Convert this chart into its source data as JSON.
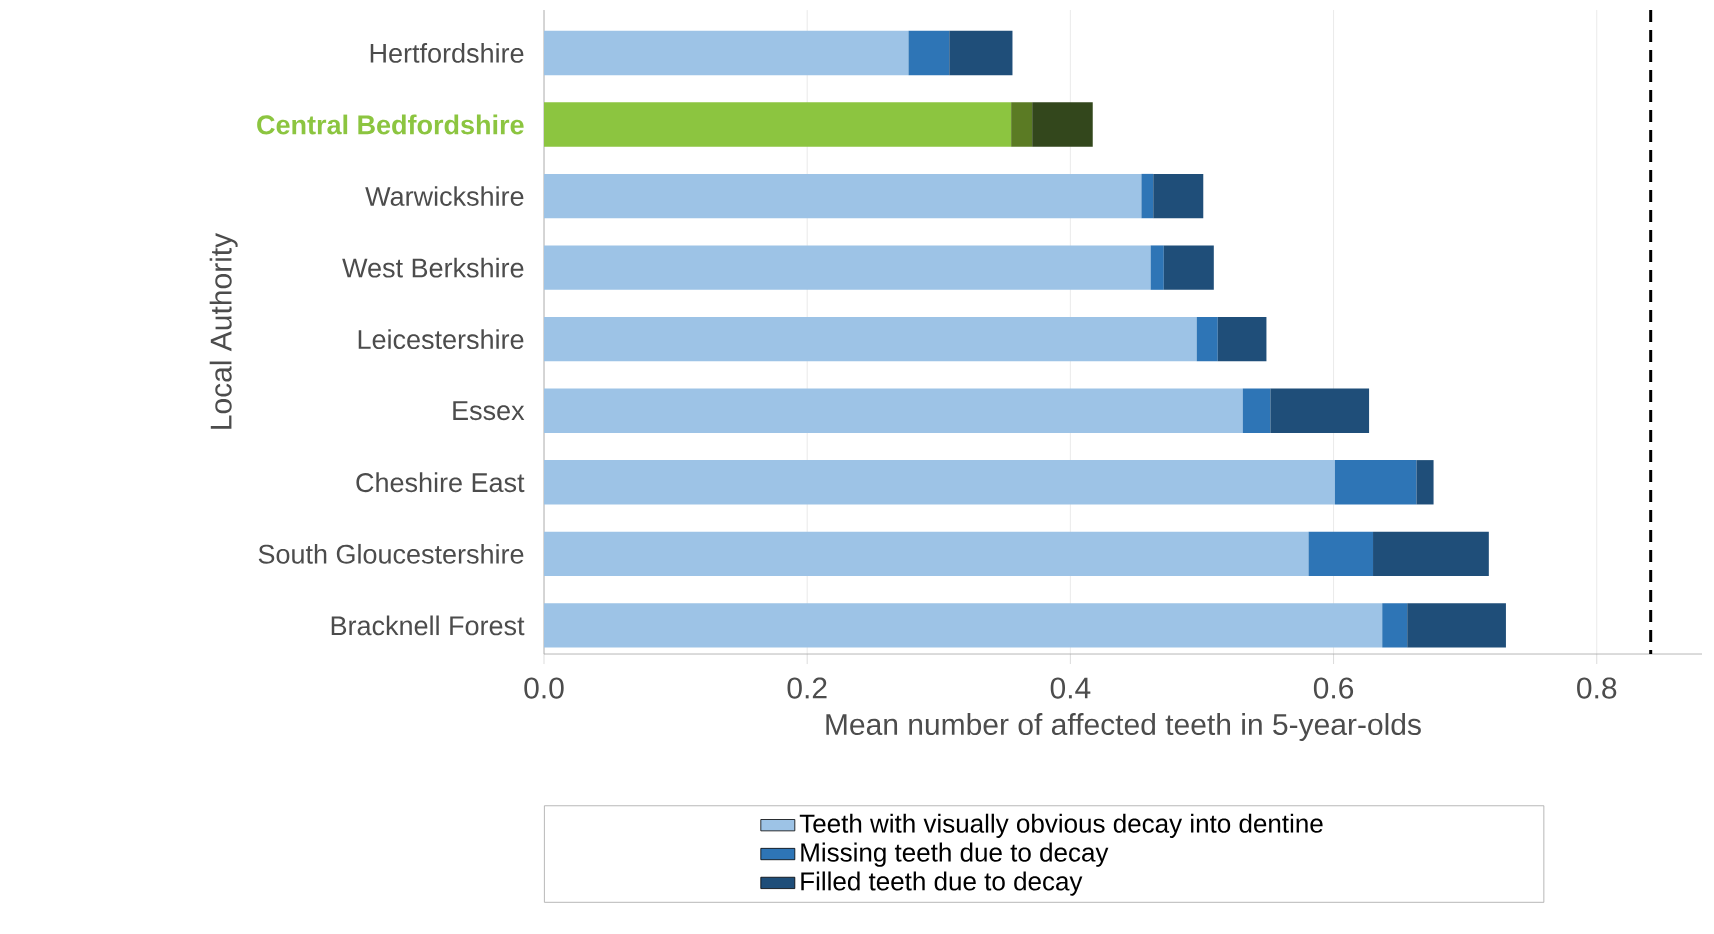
{
  "chart_data": {
    "type": "bar",
    "orientation": "horizontal",
    "stacked": true,
    "xlabel": "Mean number of affected teeth in 5-year-olds",
    "ylabel": "Local Authority",
    "categories": [
      "Hertfordshire",
      "Central Bedfordshire",
      "Warwickshire",
      "West Berkshire",
      "Leicestershire",
      "Essex",
      "Cheshire East",
      "South Gloucestershire",
      "Bracknell Forest"
    ],
    "series": [
      {
        "name": "Teeth with visually obvious decay into dentine",
        "color": "#9dc3e6",
        "colors": [
          "#9dc3e6",
          "#8cc540",
          "#9dc3e6",
          "#9dc3e6",
          "#9dc3e6",
          "#9dc3e6",
          "#9dc3e6",
          "#9dc3e6",
          "#9dc3e6"
        ],
        "values": [
          0.277,
          0.355,
          0.454,
          0.461,
          0.496,
          0.531,
          0.601,
          0.581,
          0.637
        ]
      },
      {
        "name": "Missing teeth due to decay",
        "color": "#2e75b6",
        "colors": [
          "#2e75b6",
          "#5b7b24",
          "#2e75b6",
          "#2e75b6",
          "#2e75b6",
          "#2e75b6",
          "#2e75b6",
          "#2e75b6",
          "#2e75b6"
        ],
        "values": [
          0.031,
          0.016,
          0.009,
          0.01,
          0.016,
          0.021,
          0.062,
          0.049,
          0.019
        ]
      },
      {
        "name": "Filled teeth due to decay",
        "color": "#1f4e79",
        "colors": [
          "#1f4e79",
          "#33471c",
          "#1f4e79",
          "#1f4e79",
          "#1f4e79",
          "#1f4e79",
          "#1f4e79",
          "#1f4e79",
          "#1f4e79"
        ],
        "values": [
          0.048,
          0.046,
          0.038,
          0.038,
          0.037,
          0.075,
          0.013,
          0.088,
          0.075
        ]
      }
    ],
    "xlim": [
      0,
      0.88
    ],
    "xticks": [
      {
        "value": 0,
        "label": "0.0"
      },
      0.2,
      0.4,
      0.6,
      0.8
    ],
    "ref_lines": [
      {
        "axis": "x",
        "value": 0.841,
        "color": "#000000",
        "line_style": "dashed"
      }
    ],
    "grid": "x",
    "legend": "bottom"
  }
}
